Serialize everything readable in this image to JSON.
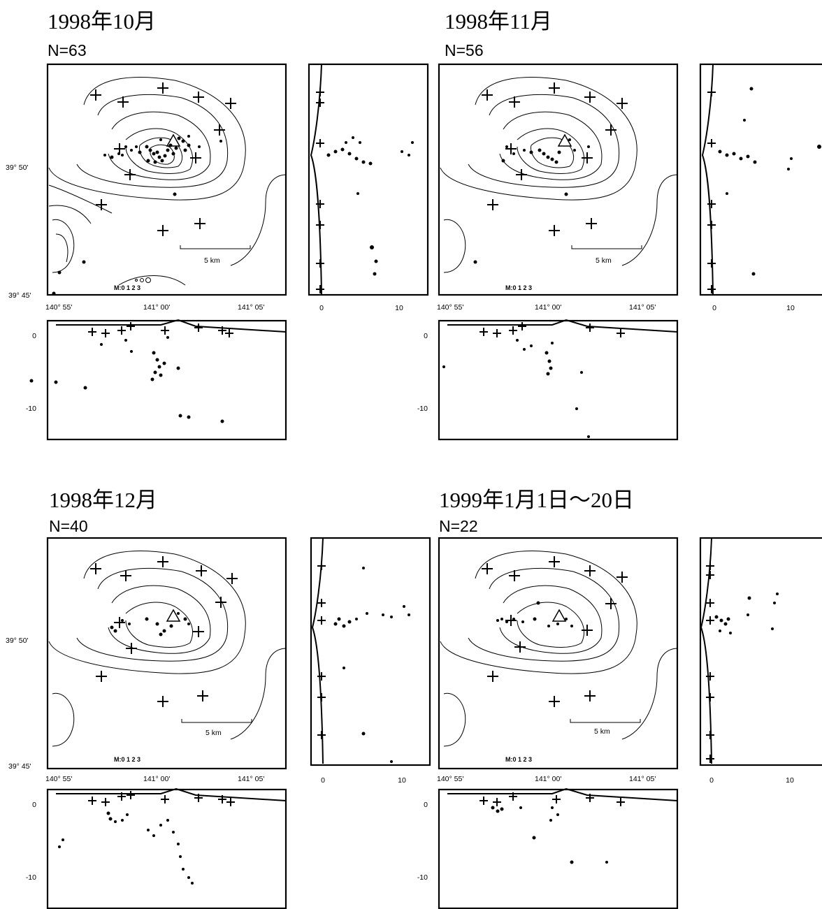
{
  "common": {
    "lat_labels": [
      "39° 50'",
      "39° 45'"
    ],
    "lon_labels": [
      "140° 55'",
      "141° 00'",
      "141° 05'"
    ],
    "side_ticks": [
      "0",
      "10"
    ],
    "depth_ticks": [
      "0",
      "-10"
    ],
    "scale_label": "5 km",
    "magnitude_legend": "M:0 1 2 3"
  },
  "panels": [
    {
      "title": "1998年10月",
      "count": "N=63"
    },
    {
      "title": "1998年11月",
      "count": "N=56"
    },
    {
      "title": "1998年12月",
      "count": "N=40"
    },
    {
      "title": "1999年1月1日～20日",
      "count": "N=22"
    }
  ]
}
